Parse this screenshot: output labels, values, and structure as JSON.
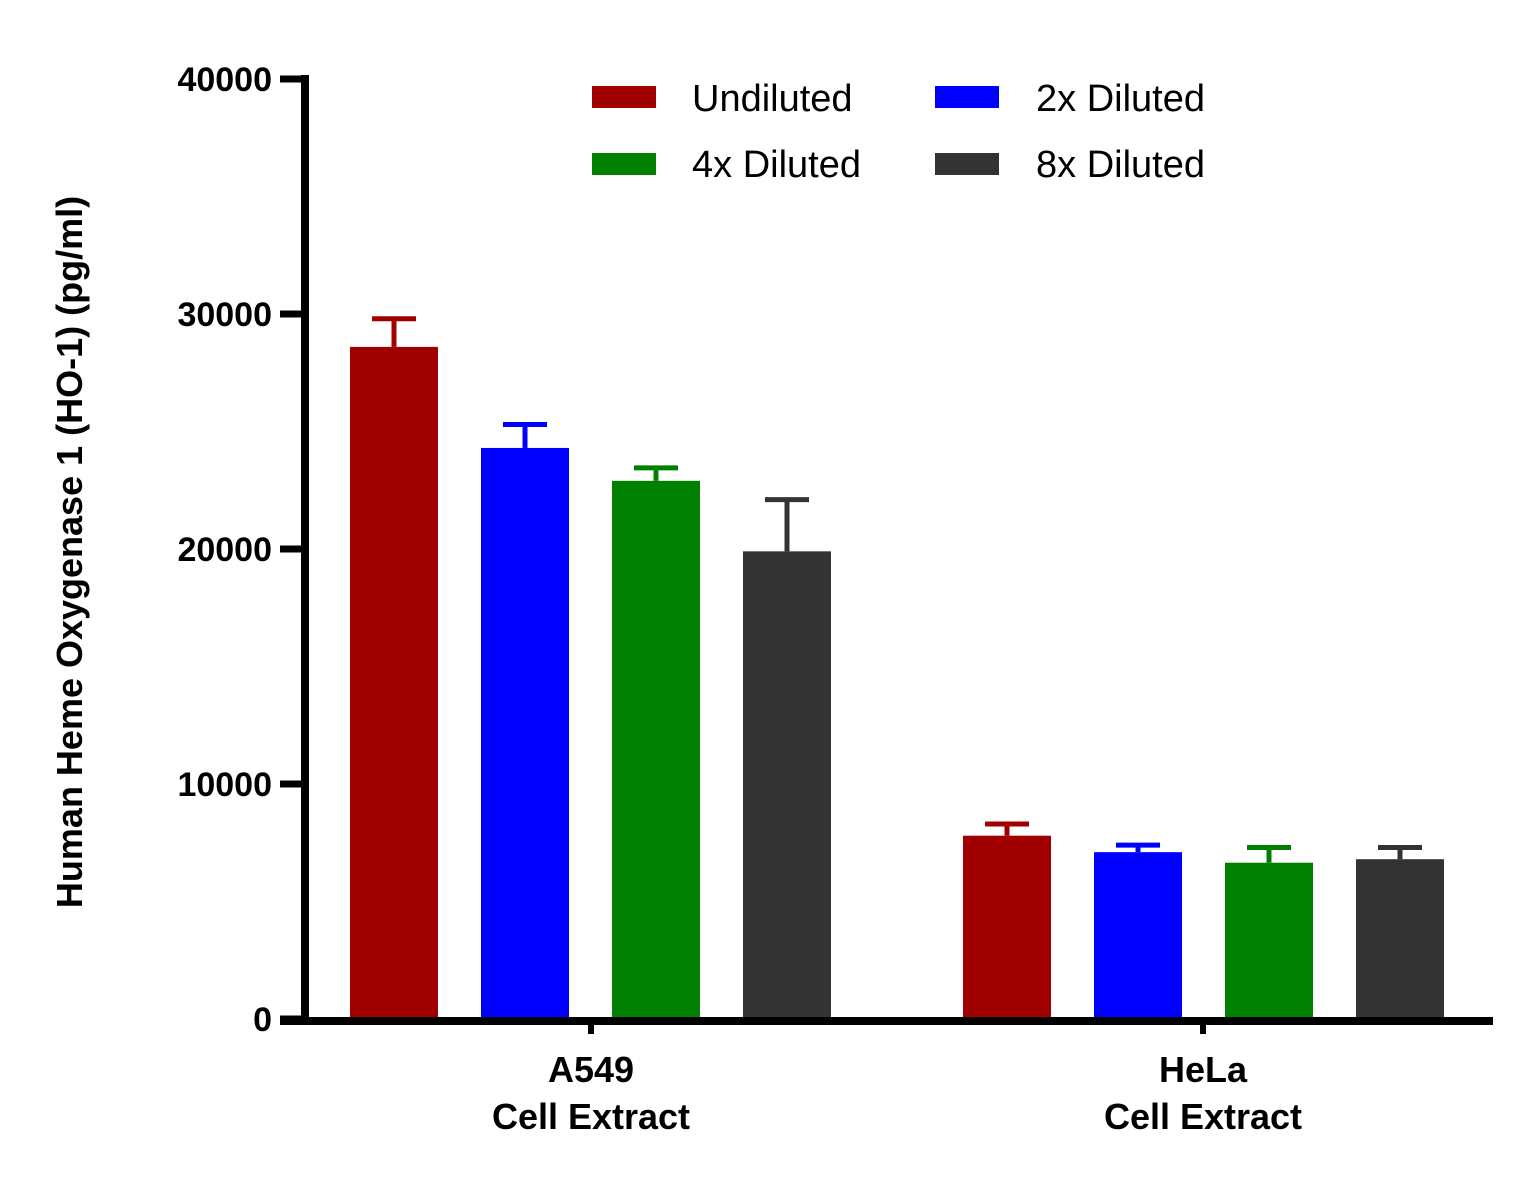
{
  "chart_data": {
    "type": "bar",
    "title": "",
    "ylabel": "Human Heme Oxygenase 1 (HO-1) (pg/ml)",
    "xlabel": "",
    "ylim": [
      0,
      40000
    ],
    "yticks": [
      0,
      10000,
      20000,
      30000,
      40000
    ],
    "ytick_labels": [
      "0",
      "10000",
      "20000",
      "30000",
      "40000"
    ],
    "grid": false,
    "legend_position": "top",
    "categories": [
      {
        "line1": "A549",
        "line2": "Cell Extract"
      },
      {
        "line1": "HeLa",
        "line2": "Cell Extract"
      }
    ],
    "series": [
      {
        "name": "Undiluted",
        "color": "#a00000",
        "values": [
          28600,
          7800
        ],
        "errors": [
          1200,
          500
        ]
      },
      {
        "name": "2x Diluted",
        "color": "#0000ff",
        "values": [
          24300,
          7100
        ],
        "errors": [
          1000,
          300
        ]
      },
      {
        "name": "4x Diluted",
        "color": "#008000",
        "values": [
          22900,
          6650
        ],
        "errors": [
          550,
          650
        ]
      },
      {
        "name": "8x Diluted",
        "color": "#333333",
        "values": [
          19900,
          6800
        ],
        "errors": [
          2200,
          500
        ]
      }
    ]
  }
}
